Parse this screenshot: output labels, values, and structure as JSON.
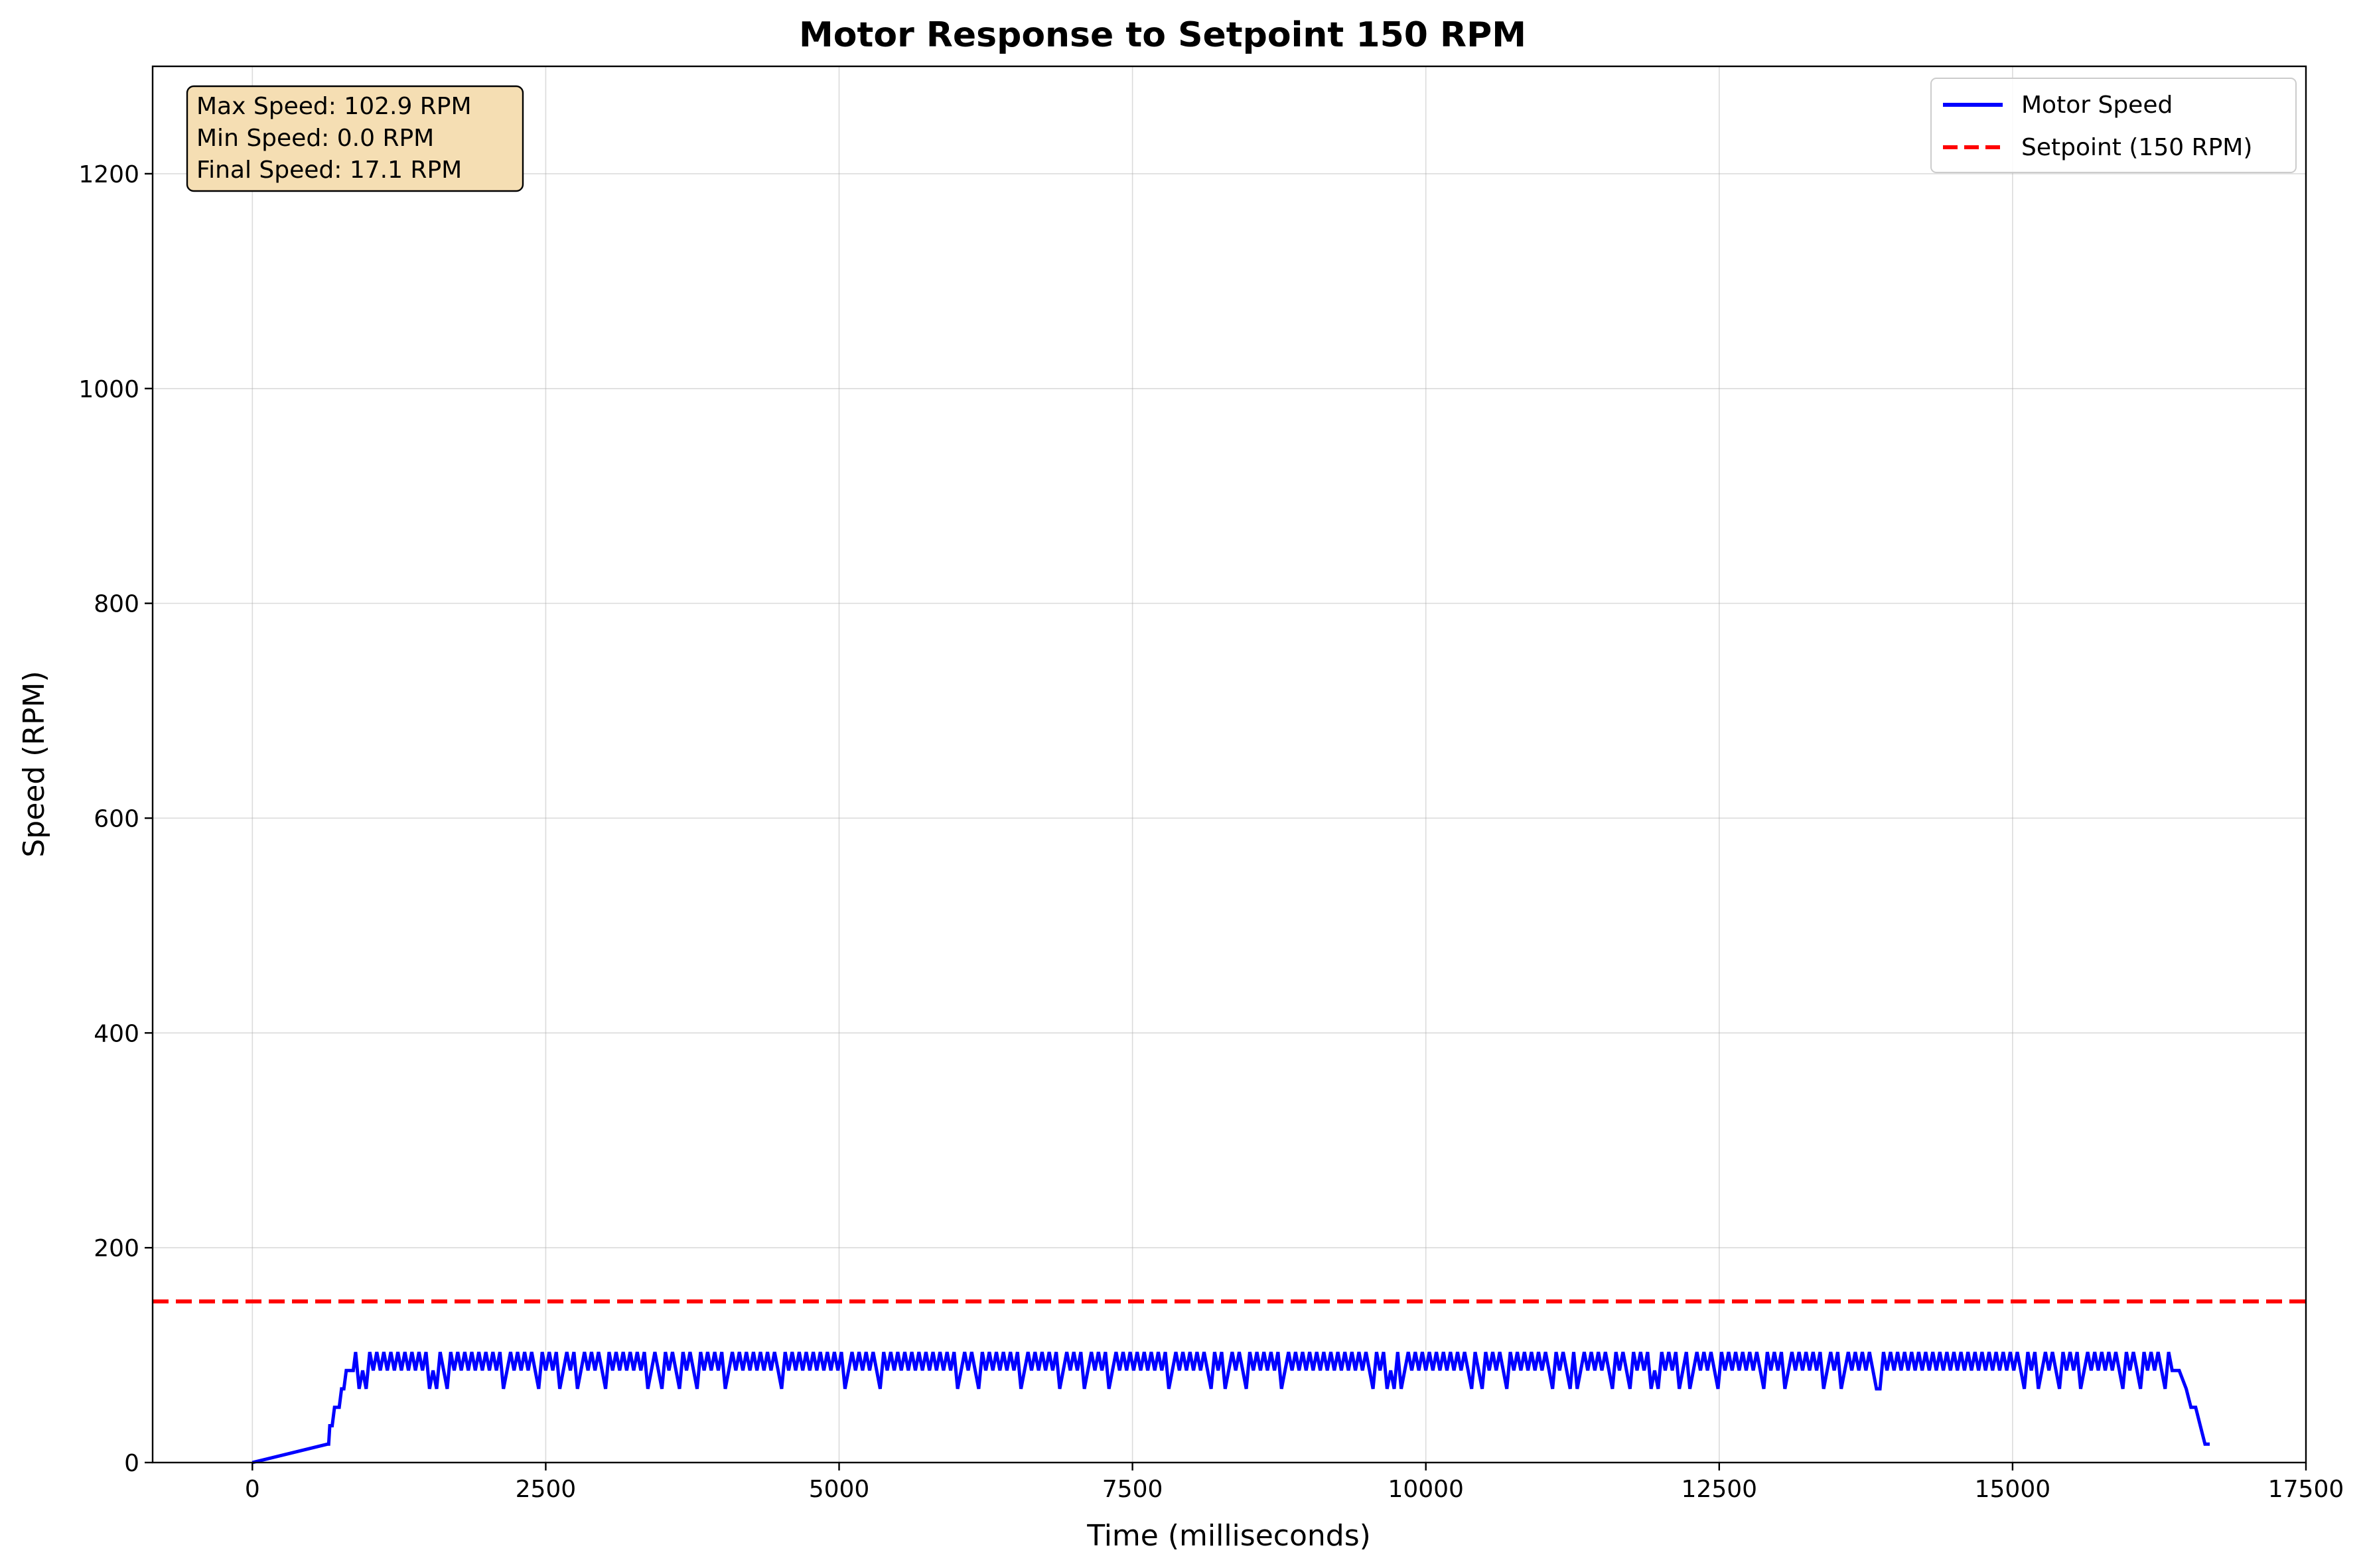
{
  "colors": {
    "motor_speed": "#0000ff",
    "setpoint": "#ff0000",
    "stats_box_fill": "#f5deb3",
    "stats_box_border": "#000000"
  },
  "chart_data": {
    "type": "line",
    "title": "Motor Response to Setpoint 150 RPM",
    "xlabel": "Time (milliseconds)",
    "ylabel": "Speed (RPM)",
    "xlim": [
      -850,
      17500
    ],
    "ylim": [
      0,
      1300
    ],
    "xticks": [
      0,
      2500,
      5000,
      7500,
      10000,
      12500,
      15000,
      17500
    ],
    "yticks": [
      0,
      200,
      400,
      600,
      800,
      1000,
      1200
    ],
    "grid": true,
    "legend_position": "top-right",
    "legend": [
      {
        "label": "Motor Speed",
        "style": "solid",
        "color_key": "motor_speed"
      },
      {
        "label": "Setpoint (150 RPM)",
        "style": "dashed",
        "color_key": "setpoint"
      }
    ],
    "stats": [
      "Max Speed: 102.9 RPM",
      "Min Speed: 0.0 RPM",
      "Final Speed: 17.1 RPM"
    ],
    "setpoint": 150,
    "series": [
      {
        "name": "Motor Speed",
        "levels": [
          85.7,
          102.9
        ],
        "dip_level": 68.6,
        "x": [
          0,
          640,
          650,
          660,
          680,
          700,
          720,
          740,
          760,
          780,
          800,
          820,
          840,
          860,
          880
        ],
        "y": [
          0,
          17.1,
          17.1,
          34.3,
          34.3,
          51.4,
          51.4,
          51.4,
          68.6,
          68.6,
          85.7,
          85.7,
          85.7,
          85.7,
          102.9
        ],
        "plateau_start": 880,
        "plateau_end": 16380,
        "dips": [
          900,
          960,
          1500,
          1560,
          1650,
          2150,
          2430,
          2630,
          2780,
          3020,
          3360,
          3480,
          3650,
          3790,
          4040,
          4510,
          5060,
          5340,
          6000,
          6200,
          6560,
          6880,
          7080,
          7300,
          7810,
          8160,
          8300,
          8480,
          8780,
          9550,
          9660,
          9730,
          9800,
          10390,
          10480,
          10680,
          11080,
          11240,
          11290,
          11600,
          11740,
          11920,
          11980,
          12170,
          12250,
          12480,
          12870,
          13050,
          13380,
          13530,
          13830,
          13870,
          15100,
          15230,
          15390,
          15570,
          15930,
          16080,
          16300
        ],
        "tail_x": [
          16380,
          16420,
          16480,
          16520,
          16560,
          16600,
          16640,
          16680
        ],
        "tail_y": [
          85.7,
          85.7,
          68.6,
          51.4,
          51.4,
          34.3,
          17.1,
          17.1
        ]
      }
    ]
  }
}
